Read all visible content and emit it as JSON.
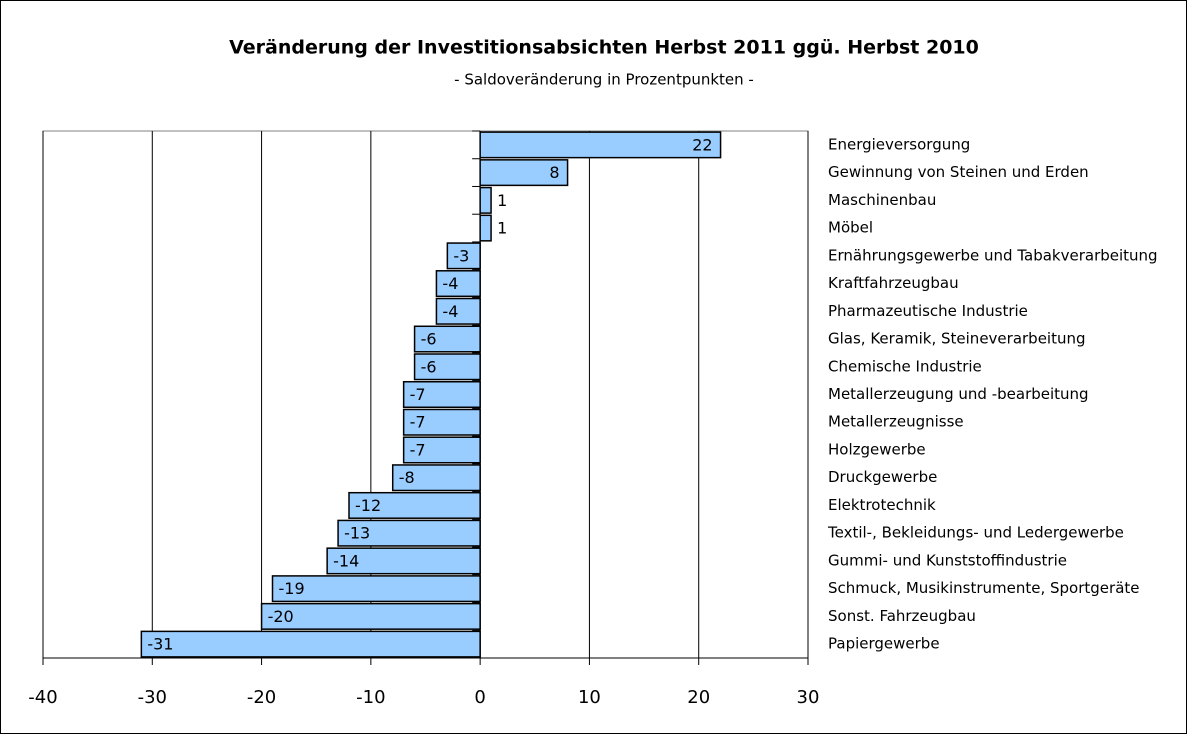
{
  "chart_data": {
    "type": "bar",
    "orientation": "horizontal",
    "title": "Veränderung der Investitionsabsichten Herbst 2011 ggü. Herbst 2010",
    "subtitle": "- Saldoveränderung in Prozentpunkten -",
    "categories": [
      "Energieversorgung",
      "Gewinnung von Steinen und Erden",
      "Maschinenbau",
      "Möbel",
      "Ernährungsgewerbe und Tabakverarbeitung",
      "Kraftfahrzeugbau",
      "Pharmazeutische Industrie",
      "Glas, Keramik, Steineverarbeitung",
      "Chemische Industrie",
      "Metallerzeugung und -bearbeitung",
      "Metallerzeugnisse",
      "Holzgewerbe",
      "Druckgewerbe",
      "Elektrotechnik",
      "Textil-, Bekleidungs- und Ledergewerbe",
      "Gummi- und Kunststoffindustrie",
      "Schmuck, Musikinstrumente, Sportgeräte",
      "Sonst. Fahrzeugbau",
      "Papiergewerbe"
    ],
    "values": [
      22,
      8,
      1,
      1,
      -3,
      -4,
      -4,
      -6,
      -6,
      -7,
      -7,
      -7,
      -8,
      -12,
      -13,
      -14,
      -19,
      -20,
      -31
    ],
    "color": "#99ccff",
    "xlim": [
      -40,
      30
    ],
    "xticks": [
      -40,
      -30,
      -20,
      -10,
      0,
      10,
      20,
      30
    ],
    "grid": true
  }
}
